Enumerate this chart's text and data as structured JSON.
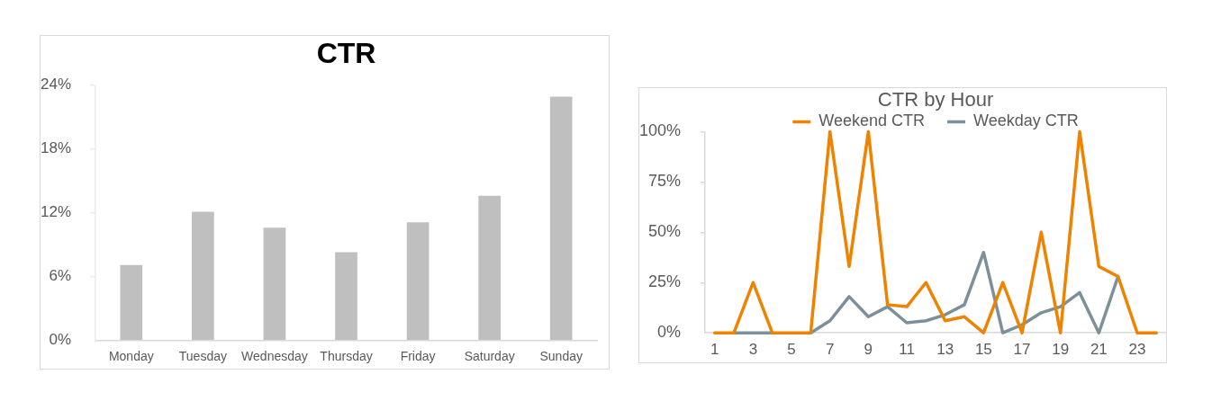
{
  "chart_data": [
    {
      "type": "bar",
      "title": "CTR",
      "categories": [
        "Monday",
        "Tuesday",
        "Wednesday",
        "Thursday",
        "Friday",
        "Saturday",
        "Sunday"
      ],
      "values": [
        7.1,
        12.1,
        10.6,
        8.3,
        11.1,
        13.6,
        22.9
      ],
      "color": "#bfbfbf",
      "ylim": [
        0,
        24
      ],
      "yticks": [
        {
          "value": 0,
          "label": "0%"
        },
        {
          "value": 6,
          "label": "6%"
        },
        {
          "value": 12,
          "label": "12%"
        },
        {
          "value": 18,
          "label": "18%"
        },
        {
          "value": 24,
          "label": "24%"
        }
      ]
    },
    {
      "type": "line",
      "title": "CTR by Hour",
      "x": [
        1,
        2,
        3,
        4,
        5,
        6,
        7,
        8,
        9,
        10,
        11,
        12,
        13,
        14,
        15,
        16,
        17,
        18,
        19,
        20,
        21,
        22,
        23,
        24
      ],
      "xlim": [
        0.5,
        24.5
      ],
      "xticks": [
        1,
        3,
        5,
        7,
        9,
        11,
        13,
        15,
        17,
        19,
        21,
        23
      ],
      "series": [
        {
          "name": "Weekend CTR",
          "color": "#ef8300",
          "values": [
            0,
            0,
            25,
            0,
            0,
            0,
            100,
            33,
            100,
            14,
            13,
            25,
            6,
            8,
            0,
            25,
            0,
            50,
            0,
            100,
            33,
            28,
            0,
            0
          ]
        },
        {
          "name": "Weekday CTR",
          "color": "#7b909a",
          "values": [
            null,
            0,
            0,
            0,
            null,
            0,
            6,
            18,
            8,
            13,
            5,
            6,
            9,
            14,
            40,
            0,
            4,
            10,
            13,
            20,
            0,
            28,
            null,
            null
          ]
        }
      ],
      "ylim": [
        0,
        100
      ],
      "yticks": [
        {
          "value": 0,
          "label": "0%"
        },
        {
          "value": 25,
          "label": "25%"
        },
        {
          "value": 50,
          "label": "50%"
        },
        {
          "value": 75,
          "label": "75%"
        },
        {
          "value": 100,
          "label": "100%"
        }
      ],
      "legend": "top"
    }
  ]
}
